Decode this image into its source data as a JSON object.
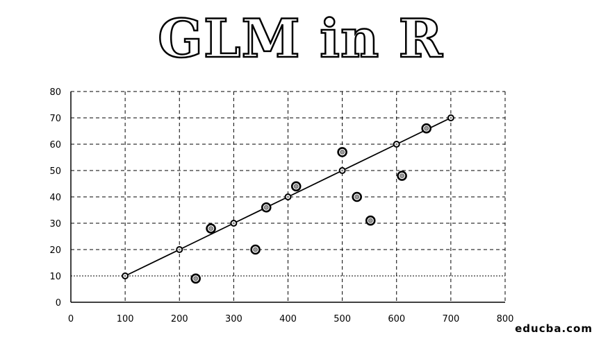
{
  "title": "GLM in R",
  "watermark": "educba.com",
  "colors": {
    "text": "#000000",
    "grid": "#000000",
    "background": "#ffffff"
  },
  "chart_data": {
    "type": "scatter",
    "title": "GLM in R",
    "xlabel": "",
    "ylabel": "",
    "xlim": [
      0,
      800
    ],
    "ylim": [
      0,
      80
    ],
    "x_ticks": [
      0,
      100,
      200,
      300,
      400,
      500,
      600,
      700,
      800
    ],
    "y_ticks": [
      0,
      10,
      20,
      30,
      40,
      50,
      60,
      70,
      80
    ],
    "grid": true,
    "grid_style": "dashed",
    "legend": "none",
    "series": [
      {
        "kind": "points",
        "x": [
          230,
          258,
          340,
          360,
          415,
          500,
          527,
          552,
          610,
          655
        ],
        "y": [
          9,
          28,
          20,
          36,
          44,
          57,
          40,
          31,
          48,
          66
        ]
      },
      {
        "kind": "line",
        "x": [
          100,
          200,
          300,
          400,
          500,
          600,
          700
        ],
        "y": [
          10,
          20,
          30,
          40,
          50,
          60,
          70
        ]
      }
    ]
  }
}
